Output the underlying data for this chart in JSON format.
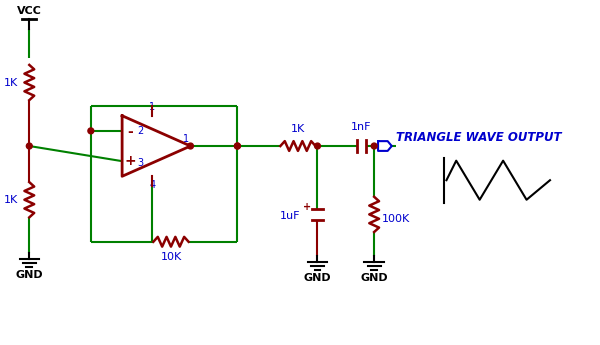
{
  "bg_color": "#ffffff",
  "gc": "#008000",
  "rc": "#8B0000",
  "lc": "#0000CD",
  "bk": "#000000",
  "figsize": [
    6.0,
    3.45
  ],
  "dpi": 100,
  "vcc_label": "VCC",
  "gnd_label": "GND",
  "r1_label": "1K",
  "r2_label": "1K",
  "r3_label": "10K",
  "r4_label": "1K",
  "r5_label": "100K",
  "c1_label": "1nF",
  "c2_label": "1uF",
  "output_label": "TRIANGLE WAVE OUTPUT"
}
